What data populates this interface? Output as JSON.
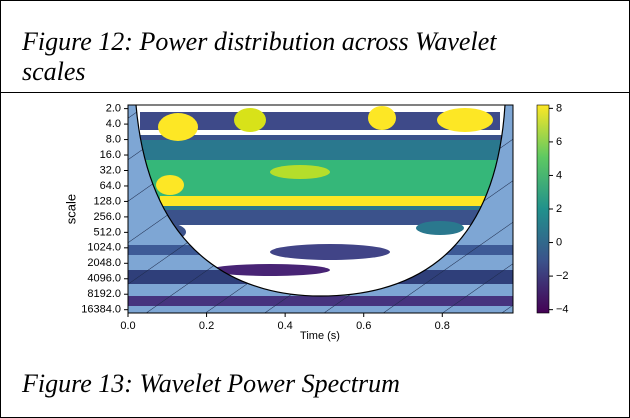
{
  "captions": [
    {
      "line1": "Figure 12: Power distribution across Wavelet",
      "line2": "scales"
    },
    "Figure 13: Wavelet Power Spectrum"
  ],
  "chart_data": {
    "type": "contour",
    "xlabel": "Time (s)",
    "ylabel": "scale",
    "xlim": [
      0,
      0.98
    ],
    "xticks": [
      {
        "value": 0,
        "label": "0.0"
      },
      0.2,
      0.4,
      0.6,
      0.8
    ],
    "ylim": [
      1.7,
      19000
    ],
    "yscale": "log",
    "yinverted": true,
    "yticks": [
      {
        "value": 2,
        "label": "2.0"
      },
      {
        "value": 4,
        "label": "4.0"
      },
      {
        "value": 8,
        "label": "8.0"
      },
      {
        "value": 16,
        "label": "16.0"
      },
      {
        "value": 32,
        "label": "32.0"
      },
      {
        "value": 64,
        "label": "64.0"
      },
      {
        "value": 128,
        "label": "128.0"
      },
      {
        "value": 256,
        "label": "256.0"
      },
      {
        "value": 512,
        "label": "512.0"
      },
      {
        "value": 1024,
        "label": "1024.0"
      },
      {
        "value": 2048,
        "label": "2048.0"
      },
      {
        "value": 4096,
        "label": "4096.0"
      },
      {
        "value": 8192,
        "label": "8192.0"
      },
      {
        "value": 16384,
        "label": "16384.0"
      }
    ],
    "clim": [
      -4.2,
      8.2
    ],
    "cticks": [
      8,
      6,
      4,
      2,
      0,
      {
        "value": -2,
        "label": "−2"
      },
      {
        "value": -4,
        "label": "−4"
      }
    ]
  }
}
